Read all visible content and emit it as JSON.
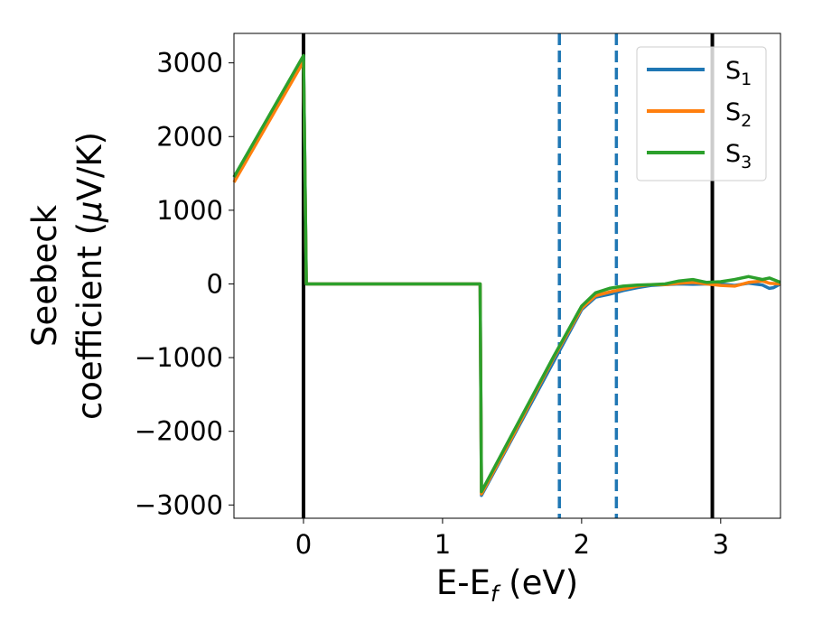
{
  "chart_data": {
    "type": "line",
    "xlabel_main": "E-E",
    "xlabel_sub": "f",
    "xlabel_unit": " (eV)",
    "ylabel_line1": "Seebeck",
    "ylabel_line2_text": "coefficient  (",
    "ylabel_line2_mu": "μ",
    "ylabel_line2_unit": "V/K)",
    "xlim": [
      -0.5,
      3.43
    ],
    "ylim": [
      -3180,
      3400
    ],
    "xticks": [
      0,
      1,
      2,
      3
    ],
    "xtick_labels": [
      "0",
      "1",
      "2",
      "3"
    ],
    "yticks": [
      3000,
      2000,
      1000,
      0,
      -1000,
      -2000,
      -3000
    ],
    "ytick_labels": [
      "3000",
      "2000",
      "1000",
      "0",
      "−1000",
      "−2000",
      "−3000"
    ],
    "vlines": [
      {
        "x": 0.0,
        "style": "solid",
        "color": "#000000"
      },
      {
        "x": 2.94,
        "style": "solid",
        "color": "#000000"
      },
      {
        "x": 1.84,
        "style": "dashed",
        "color": "#1f77b4"
      },
      {
        "x": 2.25,
        "style": "dashed",
        "color": "#1f77b4"
      }
    ],
    "legend": {
      "placement": "upper right"
    },
    "series": [
      {
        "base": "S",
        "sub": "1",
        "color": "#1f77b4",
        "x": [
          -0.5,
          0.0,
          0.02,
          1.27,
          1.27,
          1.28,
          1.5,
          1.8,
          2.0,
          2.1,
          2.2,
          2.3,
          2.4,
          2.5,
          2.6,
          2.7,
          2.8,
          2.9,
          3.0,
          3.1,
          3.2,
          3.3,
          3.35,
          3.38,
          3.43
        ],
        "y": [
          1450,
          3080,
          0,
          0,
          0,
          -2870,
          -2100,
          -1050,
          -350,
          -180,
          -140,
          -90,
          -50,
          -20,
          -10,
          0,
          -5,
          0,
          0,
          -20,
          10,
          -15,
          -60,
          -50,
          0
        ]
      },
      {
        "base": "S",
        "sub": "2",
        "color": "#ff7f0e",
        "x": [
          -0.5,
          0.0,
          0.02,
          1.27,
          1.27,
          1.28,
          1.5,
          1.8,
          2.0,
          2.1,
          2.2,
          2.3,
          2.4,
          2.5,
          2.6,
          2.7,
          2.8,
          2.9,
          3.0,
          3.1,
          3.2,
          3.3,
          3.35,
          3.43
        ],
        "y": [
          1380,
          3020,
          0,
          0,
          0,
          -2850,
          -2080,
          -1000,
          -330,
          -160,
          -110,
          -70,
          -30,
          -10,
          -10,
          10,
          20,
          0,
          -20,
          -30,
          20,
          40,
          10,
          0
        ]
      },
      {
        "base": "S",
        "sub": "3",
        "color": "#2ca02c",
        "x": [
          -0.5,
          0.0,
          0.02,
          1.27,
          1.27,
          1.28,
          1.5,
          1.8,
          2.0,
          2.1,
          2.2,
          2.3,
          2.4,
          2.5,
          2.6,
          2.7,
          2.8,
          2.9,
          3.0,
          3.1,
          3.2,
          3.3,
          3.35,
          3.43
        ],
        "y": [
          1450,
          3100,
          0,
          0,
          0,
          -2820,
          -2040,
          -980,
          -300,
          -120,
          -60,
          -30,
          -15,
          -10,
          0,
          40,
          60,
          20,
          30,
          60,
          100,
          60,
          80,
          20
        ]
      }
    ]
  }
}
